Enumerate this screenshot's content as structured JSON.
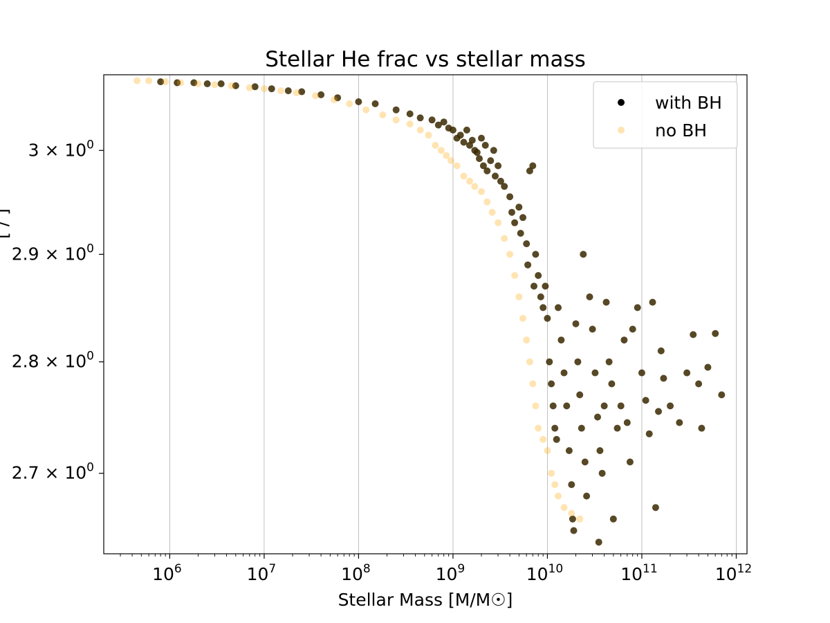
{
  "chart_data": {
    "type": "scatter",
    "title": "Stellar He frac vs stellar mass",
    "xlabel": "Stellar Mass [M/M☉]",
    "ylabel": "[ / ]",
    "xscale": "log",
    "yscale": "log",
    "xlim": [
      200000,
      1300000000000
    ],
    "ylim": [
      2.63,
      3.075
    ],
    "x_ticks": [
      {
        "value": 1000000,
        "label_base": "10",
        "label_exp": "6"
      },
      {
        "value": 10000000,
        "label_base": "10",
        "label_exp": "7"
      },
      {
        "value": 100000000,
        "label_base": "10",
        "label_exp": "8"
      },
      {
        "value": 1000000000,
        "label_base": "10",
        "label_exp": "9"
      },
      {
        "value": 10000000000,
        "label_base": "10",
        "label_exp": "10"
      },
      {
        "value": 100000000000,
        "label_base": "10",
        "label_exp": "11"
      },
      {
        "value": 1000000000000,
        "label_base": "10",
        "label_exp": "12"
      }
    ],
    "y_ticks": [
      {
        "value": 3.0,
        "label_base": "3 × 10",
        "label_exp": "0"
      },
      {
        "value": 2.9,
        "label_base": "2.9 × 10",
        "label_exp": "0"
      },
      {
        "value": 2.8,
        "label_base": "2.8 × 10",
        "label_exp": "0"
      },
      {
        "value": 2.7,
        "label_base": "2.7 × 10",
        "label_exp": "0"
      }
    ],
    "grid": "x-major",
    "legend_position": "top-right",
    "series": [
      {
        "name": "with BH",
        "color": "#000000",
        "marker_color": "#3a2800",
        "opacity": 0.85,
        "points": [
          [
            800000,
            3.068
          ],
          [
            1200000,
            3.067
          ],
          [
            1800000,
            3.067
          ],
          [
            2500000,
            3.066
          ],
          [
            3500000,
            3.066
          ],
          [
            5000000,
            3.064
          ],
          [
            8000000,
            3.063
          ],
          [
            12000000,
            3.061
          ],
          [
            18000000,
            3.059
          ],
          [
            25000000,
            3.058
          ],
          [
            40000000,
            3.055
          ],
          [
            60000000,
            3.052
          ],
          [
            100000000,
            3.048
          ],
          [
            150000000,
            3.046
          ],
          [
            250000000,
            3.04
          ],
          [
            350000000,
            3.036
          ],
          [
            450000000,
            3.032
          ],
          [
            600000000,
            3.03
          ],
          [
            700000000,
            3.025
          ],
          [
            800000000,
            3.028
          ],
          [
            900000000,
            3.022
          ],
          [
            1000000000,
            3.02
          ],
          [
            1100000000,
            3.012
          ],
          [
            1200000000,
            3.015
          ],
          [
            1300000000,
            3.008
          ],
          [
            1400000000,
            3.02
          ],
          [
            1500000000,
            3.005
          ],
          [
            1600000000,
            3.01
          ],
          [
            1700000000,
            3.0
          ],
          [
            1800000000,
            2.998
          ],
          [
            1900000000,
            2.992
          ],
          [
            2000000000,
            3.012
          ],
          [
            2100000000,
            2.985
          ],
          [
            2200000000,
            3.005
          ],
          [
            2300000000,
            2.98
          ],
          [
            2500000000,
            2.99
          ],
          [
            2700000000,
            3.0
          ],
          [
            2800000000,
            2.975
          ],
          [
            3000000000,
            2.985
          ],
          [
            3200000000,
            2.97
          ],
          [
            3500000000,
            2.965
          ],
          [
            4000000000,
            2.955
          ],
          [
            4200000000,
            2.94
          ],
          [
            4500000000,
            2.93
          ],
          [
            5000000000,
            2.945
          ],
          [
            5200000000,
            2.92
          ],
          [
            5500000000,
            2.935
          ],
          [
            6000000000,
            2.91
          ],
          [
            6200000000,
            2.89
          ],
          [
            6500000000,
            2.98
          ],
          [
            7000000000,
            2.985
          ],
          [
            7200000000,
            2.87
          ],
          [
            7500000000,
            2.9
          ],
          [
            8000000000,
            2.88
          ],
          [
            8500000000,
            2.86
          ],
          [
            9000000000,
            2.85
          ],
          [
            9500000000,
            2.87
          ],
          [
            10000000000,
            2.84
          ],
          [
            10500000000,
            2.8
          ],
          [
            11000000000,
            2.78
          ],
          [
            11500000000,
            2.76
          ],
          [
            12000000000,
            2.74
          ],
          [
            12500000000,
            2.73
          ],
          [
            13000000000,
            2.85
          ],
          [
            14000000000,
            2.82
          ],
          [
            15000000000,
            2.79
          ],
          [
            16000000000,
            2.76
          ],
          [
            17000000000,
            2.72
          ],
          [
            18000000000,
            2.69
          ],
          [
            18500000000,
            2.66
          ],
          [
            19000000000,
            2.65
          ],
          [
            20000000000,
            2.835
          ],
          [
            21000000000,
            2.8
          ],
          [
            22000000000,
            2.77
          ],
          [
            23000000000,
            2.74
          ],
          [
            24000000000,
            2.9
          ],
          [
            25000000000,
            2.71
          ],
          [
            26000000000,
            2.68
          ],
          [
            28000000000,
            2.86
          ],
          [
            30000000000,
            2.83
          ],
          [
            32000000000,
            2.79
          ],
          [
            34000000000,
            2.75
          ],
          [
            35000000000,
            2.64
          ],
          [
            36000000000,
            2.72
          ],
          [
            38000000000,
            2.7
          ],
          [
            40000000000,
            2.76
          ],
          [
            42000000000,
            2.855
          ],
          [
            45000000000,
            2.8
          ],
          [
            48000000000,
            2.78
          ],
          [
            50000000000,
            2.66
          ],
          [
            55000000000,
            2.74
          ],
          [
            60000000000,
            2.76
          ],
          [
            65000000000,
            2.82
          ],
          [
            70000000000,
            2.745
          ],
          [
            75000000000,
            2.71
          ],
          [
            80000000000,
            2.83
          ],
          [
            90000000000,
            2.85
          ],
          [
            100000000000,
            2.79
          ],
          [
            110000000000,
            2.765
          ],
          [
            120000000000,
            2.735
          ],
          [
            130000000000,
            2.855
          ],
          [
            140000000000,
            2.67
          ],
          [
            150000000000,
            2.755
          ],
          [
            160000000000,
            2.81
          ],
          [
            170000000000,
            2.785
          ],
          [
            200000000000,
            2.76
          ],
          [
            250000000000,
            2.745
          ],
          [
            300000000000,
            2.79
          ],
          [
            350000000000,
            2.825
          ],
          [
            400000000000,
            2.78
          ],
          [
            430000000000,
            2.74
          ],
          [
            500000000000,
            2.795
          ],
          [
            600000000000,
            2.826
          ],
          [
            700000000000,
            2.77
          ]
        ]
      },
      {
        "name": "no BH",
        "color": "#ffa500",
        "opacity": 0.3,
        "points": [
          [
            450000,
            3.069
          ],
          [
            600000,
            3.069
          ],
          [
            900000,
            3.068
          ],
          [
            1300000,
            3.067
          ],
          [
            2000000,
            3.066
          ],
          [
            3000000,
            3.065
          ],
          [
            4500000,
            3.064
          ],
          [
            7000000,
            3.062
          ],
          [
            10000000,
            3.061
          ],
          [
            15000000,
            3.059
          ],
          [
            22000000,
            3.057
          ],
          [
            35000000,
            3.054
          ],
          [
            55000000,
            3.05
          ],
          [
            80000000,
            3.046
          ],
          [
            120000000,
            3.04
          ],
          [
            180000000,
            3.035
          ],
          [
            250000000,
            3.03
          ],
          [
            350000000,
            3.026
          ],
          [
            450000000,
            3.02
          ],
          [
            550000000,
            3.015
          ],
          [
            650000000,
            3.005
          ],
          [
            750000000,
            3.0
          ],
          [
            850000000,
            2.995
          ],
          [
            950000000,
            2.99
          ],
          [
            1100000000,
            2.985
          ],
          [
            1300000000,
            2.975
          ],
          [
            1500000000,
            2.97
          ],
          [
            1700000000,
            2.965
          ],
          [
            2000000000,
            2.96
          ],
          [
            2300000000,
            2.95
          ],
          [
            2600000000,
            2.94
          ],
          [
            3000000000,
            2.93
          ],
          [
            3500000000,
            2.915
          ],
          [
            4000000000,
            2.9
          ],
          [
            4500000000,
            2.88
          ],
          [
            5000000000,
            2.86
          ],
          [
            5500000000,
            2.84
          ],
          [
            6000000000,
            2.82
          ],
          [
            6500000000,
            2.8
          ],
          [
            7000000000,
            2.78
          ],
          [
            7500000000,
            2.76
          ],
          [
            8000000000,
            2.74
          ],
          [
            9000000000,
            2.73
          ],
          [
            10000000000,
            2.72
          ],
          [
            11000000000,
            2.7
          ],
          [
            12000000000,
            2.69
          ],
          [
            13000000000,
            2.68
          ],
          [
            15000000000,
            2.67
          ],
          [
            18000000000,
            2.665
          ],
          [
            22000000000,
            2.66
          ]
        ]
      }
    ]
  }
}
